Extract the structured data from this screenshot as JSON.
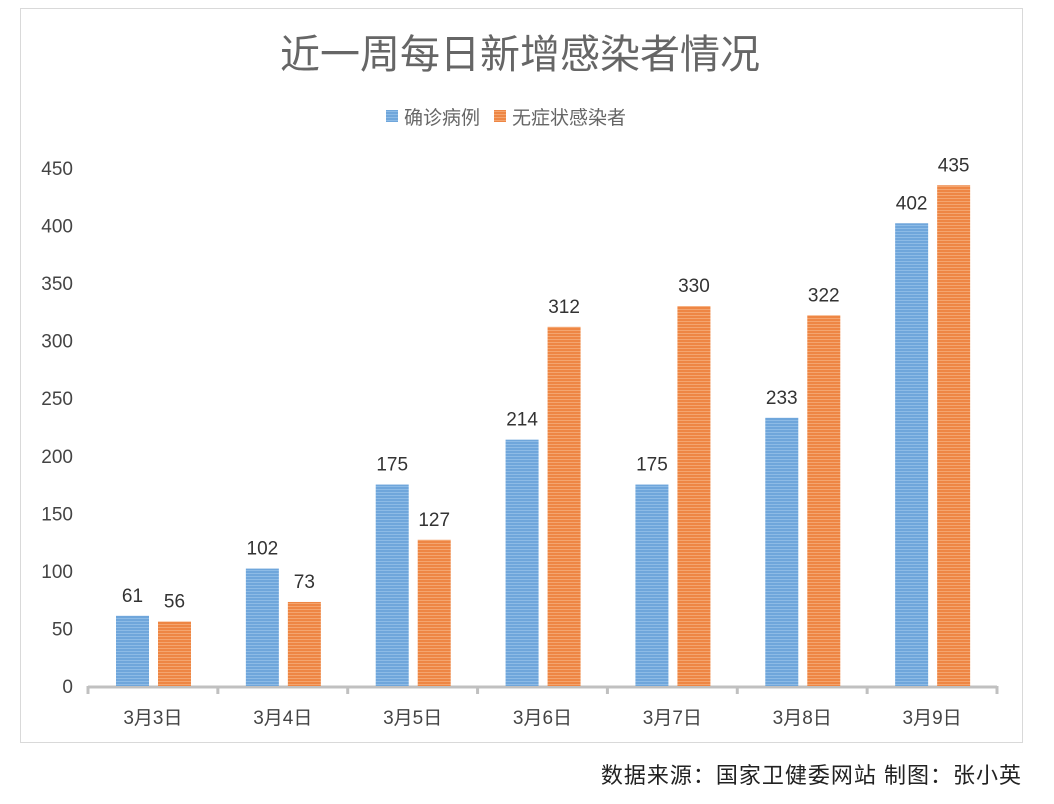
{
  "chart_data": {
    "type": "bar",
    "title": "近一周每日新增感染者情况",
    "categories": [
      "3月3日",
      "3月4日",
      "3月5日",
      "3月6日",
      "3月7日",
      "3月8日",
      "3月9日"
    ],
    "series": [
      {
        "name": "确诊病例",
        "color": "#5b9bd5",
        "values": [
          61,
          102,
          175,
          214,
          175,
          233,
          402
        ]
      },
      {
        "name": "无症状感染者",
        "color": "#ed7d31",
        "values": [
          56,
          73,
          127,
          312,
          330,
          322,
          435
        ]
      }
    ],
    "ylim": [
      0,
      450
    ],
    "yticks": [
      0,
      50,
      100,
      150,
      200,
      250,
      300,
      350,
      400,
      450
    ],
    "grid": false,
    "legend": "top-center",
    "data_labels": true
  },
  "footer": "数据来源：国家卫健委网站 制图：张小英"
}
